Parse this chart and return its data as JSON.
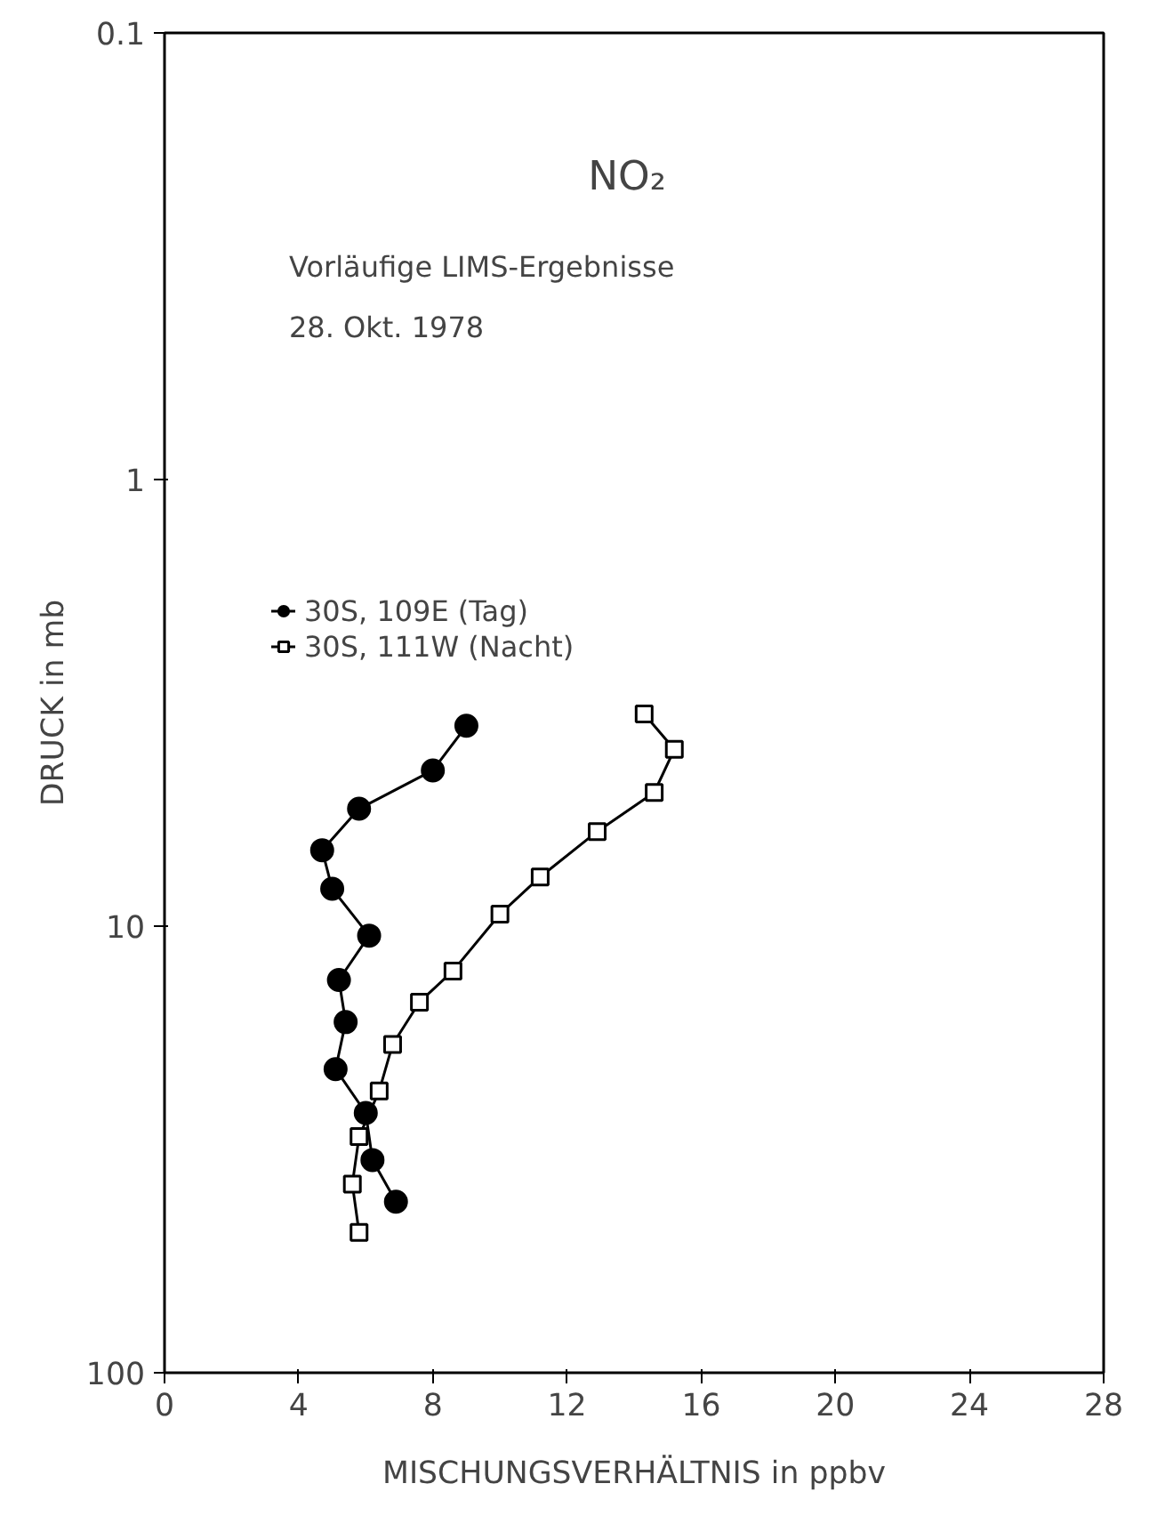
{
  "chart_data": {
    "type": "line",
    "title": "NO₂",
    "annotations": [
      "Vorläufige LIMS-Ergebnisse",
      "28. Okt. 1978"
    ],
    "xlabel": "MISCHUNGSVERHÄLTNIS in ppbv",
    "ylabel": "DRUCK in mb",
    "xlim": [
      0,
      28
    ],
    "xticks": [
      0,
      4,
      8,
      12,
      16,
      20,
      24,
      28
    ],
    "ylim": [
      100,
      0.1
    ],
    "yticks": [
      0.1,
      1,
      10,
      100
    ],
    "log": "y",
    "grid": false,
    "legend": "top left",
    "line_style": "solid",
    "series": [
      {
        "name": "30S, 109E (Tag)",
        "color": "#000000",
        "marker": "circle",
        "x": [
          9.0,
          8.0,
          5.8,
          4.7,
          5.0,
          6.1,
          5.2,
          5.4,
          5.1,
          6.0,
          6.2,
          6.9
        ],
        "values": [
          3.56,
          4.48,
          5.46,
          6.76,
          8.25,
          10.5,
          13.2,
          16.4,
          20.9,
          26.2,
          33.4,
          41.4
        ]
      },
      {
        "name": "30S, 111W (Nacht)",
        "color": "#000000",
        "marker": "square",
        "x": [
          14.3,
          15.2,
          14.6,
          12.9,
          11.2,
          10.0,
          8.6,
          7.6,
          6.8,
          6.4,
          5.8,
          5.6,
          5.8
        ],
        "values": [
          3.35,
          4.02,
          5.02,
          6.14,
          7.76,
          9.4,
          12.6,
          14.8,
          18.4,
          23.4,
          29.6,
          37.8,
          48.5
        ]
      }
    ]
  }
}
